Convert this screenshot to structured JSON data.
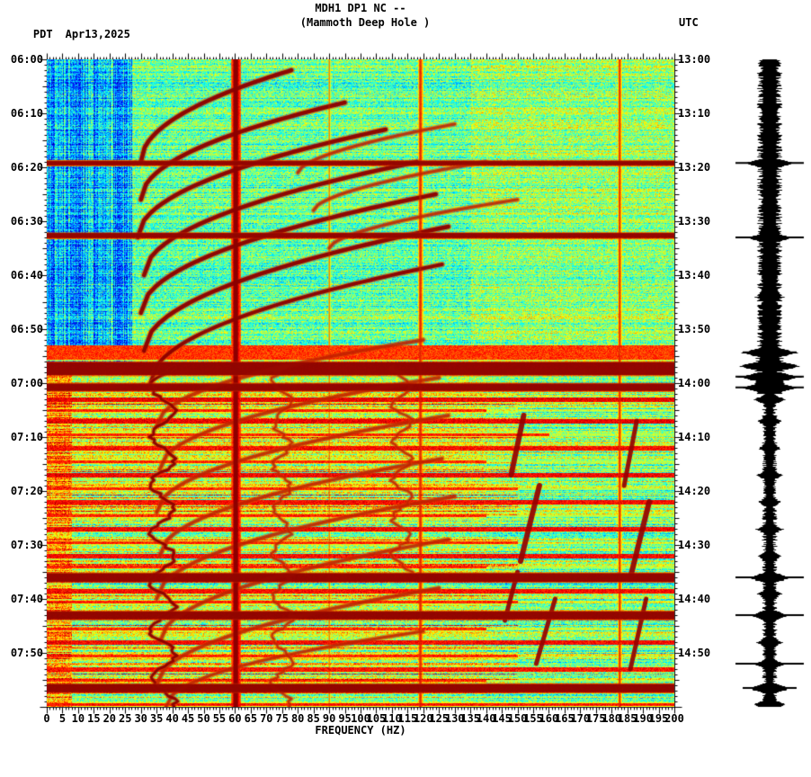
{
  "header": {
    "left_tz": "PDT",
    "date": "Apr13,2025",
    "title": "MDH1 DP1 NC --",
    "subtitle": "(Mammoth Deep Hole )",
    "right_tz": "UTC"
  },
  "axes": {
    "xlabel": "FREQUENCY (HZ)",
    "x_ticks": [
      "0",
      "5",
      "10",
      "15",
      "20",
      "25",
      "30",
      "35",
      "40",
      "45",
      "50",
      "55",
      "60",
      "65",
      "70",
      "75",
      "80",
      "85",
      "90",
      "95",
      "100",
      "105",
      "110",
      "115",
      "120",
      "125",
      "130",
      "135",
      "140",
      "145",
      "150",
      "155",
      "160",
      "165",
      "170",
      "175",
      "180",
      "185",
      "190",
      "195",
      "200"
    ],
    "left_ticks": [
      "06:00",
      "06:10",
      "06:20",
      "06:30",
      "06:40",
      "06:50",
      "07:00",
      "07:10",
      "07:20",
      "07:30",
      "07:40",
      "07:50"
    ],
    "right_ticks": [
      "13:00",
      "13:10",
      "13:20",
      "13:30",
      "13:40",
      "13:50",
      "14:00",
      "14:10",
      "14:20",
      "14:30",
      "14:40",
      "14:50"
    ]
  },
  "chart_data": {
    "type": "heatmap",
    "subtype": "spectrogram",
    "title": "MDH1 DP1 NC -- (Mammoth Deep Hole )",
    "x_axis": {
      "label": "FREQUENCY (HZ)",
      "min": 0,
      "max": 200,
      "tick_step": 5
    },
    "y_axis_left": {
      "label": "PDT",
      "start": "06:00",
      "end": "08:00",
      "tick_step_min": 10
    },
    "y_axis_right": {
      "label": "UTC",
      "start": "13:00",
      "end": "15:00",
      "tick_step_min": 10
    },
    "palette": "jet",
    "seed": 1337,
    "split_min": 56,
    "regions": {
      "upper_left_blue": {
        "f_max": 27,
        "t_max": 56,
        "base": 0.3
      },
      "upper_base": 0.47,
      "upper_right": {
        "f_min": 135,
        "base": 0.52
      },
      "lower_base": 0.54,
      "lower_lowfreq_red": {
        "f_max": 8,
        "base": 0.72
      }
    },
    "vertical_lines": [
      {
        "f": 60.2,
        "w": 1.6,
        "s": 1.0,
        "lw": 5
      },
      {
        "f": 119,
        "w": 0.9,
        "s": 0.85,
        "lw": 2.5
      },
      {
        "f": 182.5,
        "w": 0.8,
        "s": 0.82,
        "lw": 2
      },
      {
        "f": 90,
        "w": 0.5,
        "s": 0.7,
        "lw": 1.2
      }
    ],
    "events": [
      {
        "t": 19.2,
        "w": 0.8,
        "s": 1.02,
        "fmax": 200
      },
      {
        "t": 32.6,
        "w": 0.9,
        "s": 1.02,
        "fmax": 200
      },
      {
        "t": 54.3,
        "w": 2.6,
        "s": 0.88,
        "fmax": 200
      },
      {
        "t": 57.3,
        "w": 2.4,
        "s": 1.04,
        "fmax": 200
      },
      {
        "t": 60.7,
        "w": 1.3,
        "s": 1.04,
        "fmax": 200
      },
      {
        "t": 63,
        "w": 0.7,
        "s": 0.95,
        "fmax": 200
      },
      {
        "t": 65,
        "w": 0.6,
        "s": 0.9,
        "fmax": 140
      },
      {
        "t": 67,
        "w": 0.7,
        "s": 0.95,
        "fmax": 200
      },
      {
        "t": 69.5,
        "w": 0.6,
        "s": 0.9,
        "fmax": 160
      },
      {
        "t": 72,
        "w": 0.7,
        "s": 0.93,
        "fmax": 200
      },
      {
        "t": 74.5,
        "w": 0.6,
        "s": 0.9,
        "fmax": 140
      },
      {
        "t": 77,
        "w": 0.7,
        "s": 0.94,
        "fmax": 200
      },
      {
        "t": 79.5,
        "w": 0.6,
        "s": 0.9,
        "fmax": 150
      },
      {
        "t": 82,
        "w": 0.7,
        "s": 0.93,
        "fmax": 200
      },
      {
        "t": 84.5,
        "w": 0.6,
        "s": 0.9,
        "fmax": 140
      },
      {
        "t": 87,
        "w": 0.7,
        "s": 0.94,
        "fmax": 200
      },
      {
        "t": 89.5,
        "w": 0.6,
        "s": 0.9,
        "fmax": 150
      },
      {
        "t": 92,
        "w": 0.7,
        "s": 0.93,
        "fmax": 200
      },
      {
        "t": 94,
        "w": 0.6,
        "s": 0.9,
        "fmax": 140
      },
      {
        "t": 96,
        "w": 1.6,
        "s": 1.04,
        "fmax": 200
      },
      {
        "t": 98.5,
        "w": 0.7,
        "s": 0.93,
        "fmax": 200
      },
      {
        "t": 100.5,
        "w": 0.6,
        "s": 0.9,
        "fmax": 150
      },
      {
        "t": 103,
        "w": 1.4,
        "s": 1.03,
        "fmax": 200
      },
      {
        "t": 105.5,
        "w": 0.6,
        "s": 0.9,
        "fmax": 140
      },
      {
        "t": 108,
        "w": 0.7,
        "s": 0.93,
        "fmax": 200
      },
      {
        "t": 110.5,
        "w": 0.6,
        "s": 0.9,
        "fmax": 150
      },
      {
        "t": 113,
        "w": 0.7,
        "s": 0.92,
        "fmax": 200
      },
      {
        "t": 115,
        "w": 0.6,
        "s": 0.9,
        "fmax": 140
      },
      {
        "t": 116.5,
        "w": 1.5,
        "s": 1.04,
        "fmax": 200
      },
      {
        "t": 119.5,
        "w": 0.6,
        "s": 0.92,
        "fmax": 200
      }
    ],
    "arcs": [
      {
        "f0": 30,
        "f1": 78,
        "t1": 19,
        "k": 17,
        "p": 0.5,
        "s": 0.97,
        "w": 4.5
      },
      {
        "f0": 30,
        "f1": 95,
        "t1": 26,
        "k": 18,
        "p": 0.5,
        "s": 0.97,
        "w": 4.5
      },
      {
        "f0": 29,
        "f1": 108,
        "t1": 33,
        "k": 20,
        "p": 0.5,
        "s": 0.98,
        "w": 4.5
      },
      {
        "f0": 31,
        "f1": 118,
        "t1": 40,
        "k": 21,
        "p": 0.5,
        "s": 0.97,
        "w": 4.5
      },
      {
        "f0": 30,
        "f1": 124,
        "t1": 47,
        "k": 22,
        "p": 0.5,
        "s": 0.97,
        "w": 4.5
      },
      {
        "f0": 31,
        "f1": 128,
        "t1": 54,
        "k": 23,
        "p": 0.5,
        "s": 0.98,
        "w": 4.5
      },
      {
        "f0": 33,
        "f1": 126,
        "t1": 60,
        "k": 22,
        "p": 0.5,
        "s": 0.95,
        "w": 4
      },
      {
        "f0": 80,
        "f1": 130,
        "t1": 21,
        "k": 9,
        "p": 0.6,
        "s": 0.9,
        "w": 3
      },
      {
        "f0": 85,
        "f1": 140,
        "t1": 28,
        "k": 9,
        "p": 0.6,
        "s": 0.88,
        "w": 3
      },
      {
        "f0": 90,
        "f1": 150,
        "t1": 35,
        "k": 9,
        "p": 0.6,
        "s": 0.88,
        "w": 3
      },
      {
        "f0": 35,
        "f1": 120,
        "t1": 68,
        "k": 16,
        "p": 0.5,
        "s": 0.93,
        "w": 3.5
      },
      {
        "f0": 36,
        "f1": 125,
        "t1": 76,
        "k": 17,
        "p": 0.5,
        "s": 0.93,
        "w": 3.5
      },
      {
        "f0": 35,
        "f1": 128,
        "t1": 84,
        "k": 18,
        "p": 0.5,
        "s": 0.94,
        "w": 3.5
      },
      {
        "f0": 36,
        "f1": 126,
        "t1": 92,
        "k": 18,
        "p": 0.5,
        "s": 0.93,
        "w": 3.5
      },
      {
        "f0": 35,
        "f1": 130,
        "t1": 100,
        "k": 19,
        "p": 0.5,
        "s": 0.94,
        "w": 3.5
      },
      {
        "f0": 36,
        "f1": 128,
        "t1": 108,
        "k": 19,
        "p": 0.5,
        "s": 0.93,
        "w": 3.5
      },
      {
        "f0": 35,
        "f1": 125,
        "t1": 116,
        "k": 18,
        "p": 0.5,
        "s": 0.93,
        "w": 3.5
      },
      {
        "f0": 38,
        "f1": 120,
        "t1": 120,
        "k": 14,
        "p": 0.5,
        "s": 0.9,
        "w": 3
      }
    ],
    "tremor_lines": [
      {
        "f": 37,
        "amp": 4,
        "per": 9,
        "t0": 57,
        "t1": 120,
        "s": 0.97,
        "w": 3,
        "ph": 0
      },
      {
        "f": 75,
        "amp": 3,
        "per": 8,
        "t0": 57,
        "t1": 120,
        "s": 0.85,
        "w": 2.2,
        "ph": 2
      },
      {
        "f": 113,
        "amp": 3,
        "per": 7,
        "t0": 57,
        "t1": 95,
        "s": 0.85,
        "w": 2.2,
        "ph": 4
      }
    ],
    "streaks": [
      {
        "f0": 152,
        "t0": 66,
        "f1": 148,
        "t1": 77,
        "w": 6,
        "s": 1.0
      },
      {
        "f0": 157,
        "t0": 79,
        "f1": 151,
        "t1": 93,
        "w": 6,
        "s": 1.0
      },
      {
        "f0": 150,
        "t0": 95,
        "f1": 146,
        "t1": 104,
        "w": 5,
        "s": 0.95
      },
      {
        "f0": 188,
        "t0": 67,
        "f1": 184,
        "t1": 79,
        "w": 5,
        "s": 0.95
      },
      {
        "f0": 192,
        "t0": 82,
        "f1": 186,
        "t1": 96,
        "w": 6,
        "s": 1.0
      },
      {
        "f0": 162,
        "t0": 100,
        "f1": 156,
        "t1": 112,
        "w": 5,
        "s": 0.95
      },
      {
        "f0": 191,
        "t0": 100,
        "f1": 186,
        "t1": 113,
        "w": 5,
        "s": 0.95
      }
    ],
    "seismogram": {
      "spikes": [
        {
          "t": 19.2,
          "amp": 26
        },
        {
          "t": 33,
          "amp": 22
        },
        {
          "t": 44,
          "amp": 14
        },
        {
          "t": 54.3,
          "amp": 30
        },
        {
          "t": 56.8,
          "amp": 34
        },
        {
          "t": 58.8,
          "amp": 34
        },
        {
          "t": 60.8,
          "amp": 30
        },
        {
          "t": 63,
          "amp": 16
        },
        {
          "t": 67,
          "amp": 12
        },
        {
          "t": 72,
          "amp": 11
        },
        {
          "t": 77,
          "amp": 12
        },
        {
          "t": 82,
          "amp": 11
        },
        {
          "t": 87,
          "amp": 13
        },
        {
          "t": 92,
          "amp": 12
        },
        {
          "t": 96,
          "amp": 22
        },
        {
          "t": 99,
          "amp": 12
        },
        {
          "t": 103,
          "amp": 20
        },
        {
          "t": 108,
          "amp": 12
        },
        {
          "t": 112,
          "amp": 15
        },
        {
          "t": 116.5,
          "amp": 22
        },
        {
          "t": 119.5,
          "amp": 16
        }
      ],
      "ticks_min": [
        {
          "t": 19.2,
          "long": 1
        },
        {
          "t": 33,
          "long": 1
        },
        {
          "t": 54.3,
          "long": 0
        },
        {
          "t": 56.8,
          "long": 0
        },
        {
          "t": 58.8,
          "long": 1
        },
        {
          "t": 60.8,
          "long": 1
        },
        {
          "t": 96,
          "long": 1
        },
        {
          "t": 103,
          "long": 1
        },
        {
          "t": 112,
          "long": 1
        },
        {
          "t": 116.5,
          "long": 0
        }
      ]
    }
  }
}
